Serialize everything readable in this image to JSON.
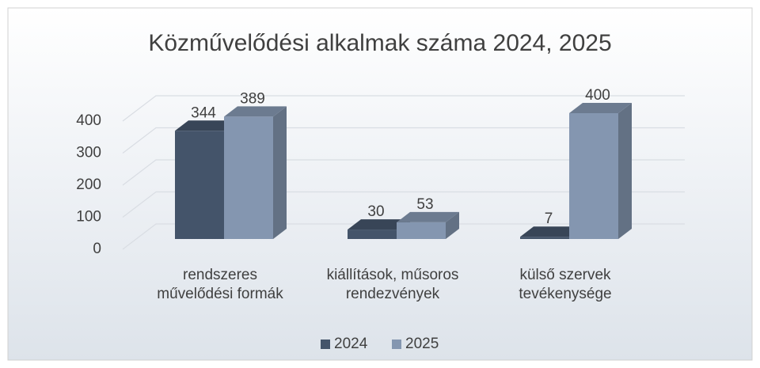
{
  "chart_data": {
    "type": "bar3d",
    "title": "Közművelődési alkalmak száma 2024, 2025",
    "categories": [
      "rendszeres művelődési formák",
      "kiállítások, műsoros rendezvények",
      "külső szervek tevékenysége"
    ],
    "series": [
      {
        "name": "2024",
        "color": "#44546a",
        "values": [
          344,
          30,
          7
        ]
      },
      {
        "name": "2025",
        "color": "#8496b0",
        "values": [
          389,
          53,
          400
        ]
      }
    ],
    "ylim": [
      0,
      400
    ],
    "yticks": [
      0,
      100,
      200,
      300,
      400
    ],
    "grid": true,
    "legend": "bottom"
  }
}
